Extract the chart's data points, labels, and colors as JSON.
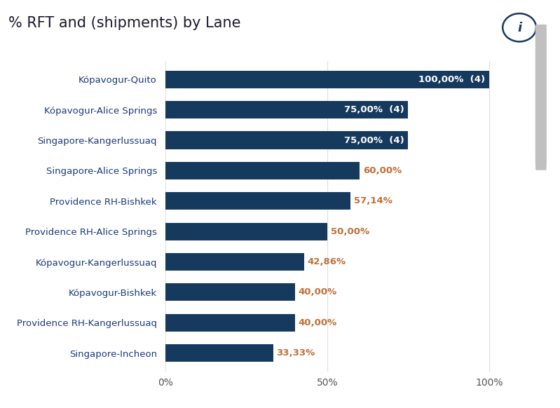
{
  "title": "% RFT and (shipments) by Lane",
  "categories": [
    "Singapore-Incheon",
    "Providence RH-Kangerlussuaq",
    "Kópavogur-Bishkek",
    "Kópavogur-Kangerlussuaq",
    "Providence RH-Alice Springs",
    "Providence RH-Bishkek",
    "Singapore-Alice Springs",
    "Singapore-Kangerlussuaq",
    "Kópavogur-Alice Springs",
    "Kópavogur-Quito"
  ],
  "values": [
    33.33,
    40.0,
    40.0,
    42.86,
    50.0,
    57.14,
    60.0,
    75.0,
    75.0,
    100.0
  ],
  "labels": [
    "33,33%",
    "40,00%",
    "40,00%",
    "42,86%",
    "50,00%",
    "57,14%",
    "60,00%",
    "75,00%  (4)",
    "75,00%  (4)",
    "100,00%  (4)"
  ],
  "inside_threshold": 75.0,
  "bar_color": "#163a5e",
  "label_color_inside": "#ffffff",
  "label_color_outside": "#c0703a",
  "title_color": "#1a1a2e",
  "ytick_color": "#1a3a7a",
  "background_color": "#ffffff",
  "fig_background": "#ffffff",
  "title_fontsize": 15,
  "label_fontsize": 9.5,
  "tick_fontsize": 10,
  "ylabel_fontsize": 9.5,
  "scrollbar_bg": "#e8e8e8",
  "scrollbar_thumb": "#c0c0c0",
  "info_color": "#163a5e"
}
